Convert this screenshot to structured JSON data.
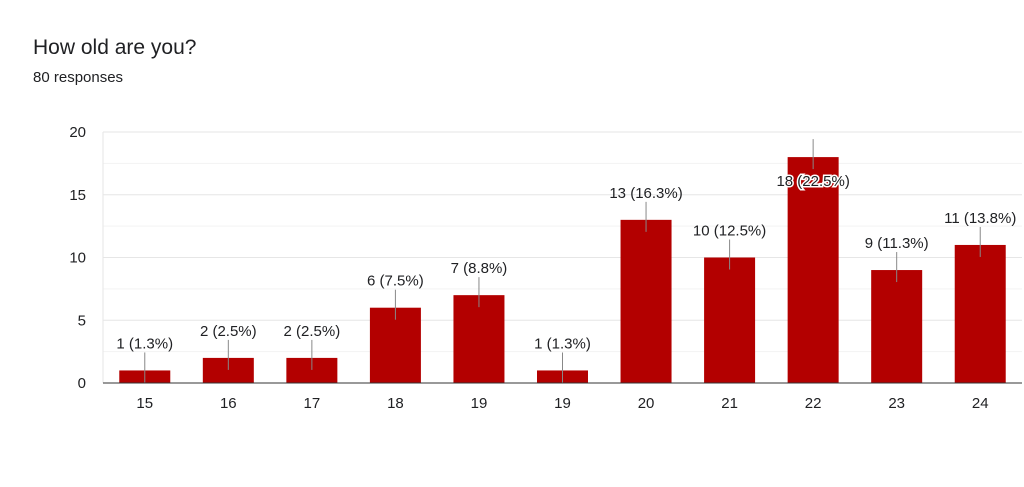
{
  "question": {
    "title": "How old are you?",
    "responses": "80 responses"
  },
  "colors": {
    "bar": "#b30000",
    "grid": "#ebebeb",
    "axis": "#333333",
    "leader": "#888888"
  },
  "chart_data": {
    "type": "bar",
    "categories": [
      "15",
      "16",
      "17",
      "18",
      "19",
      "19",
      "20",
      "21",
      "22",
      "23",
      "24"
    ],
    "values": [
      1,
      2,
      2,
      6,
      7,
      1,
      13,
      10,
      18,
      9,
      11
    ],
    "data_labels": [
      "1 (1.3%)",
      "2 (2.5%)",
      "2 (2.5%)",
      "6 (7.5%)",
      "7 (8.8%)",
      "1 (1.3%)",
      "13 (16.3%)",
      "10 (12.5%)",
      "18 (22.5%)",
      "9 (11.3%)",
      "11 (13.8%)"
    ],
    "ylim": [
      0,
      20
    ],
    "yticks": [
      0,
      5,
      10,
      15,
      20
    ],
    "xlabel": "",
    "ylabel": "",
    "grid": true,
    "legend": "none"
  }
}
